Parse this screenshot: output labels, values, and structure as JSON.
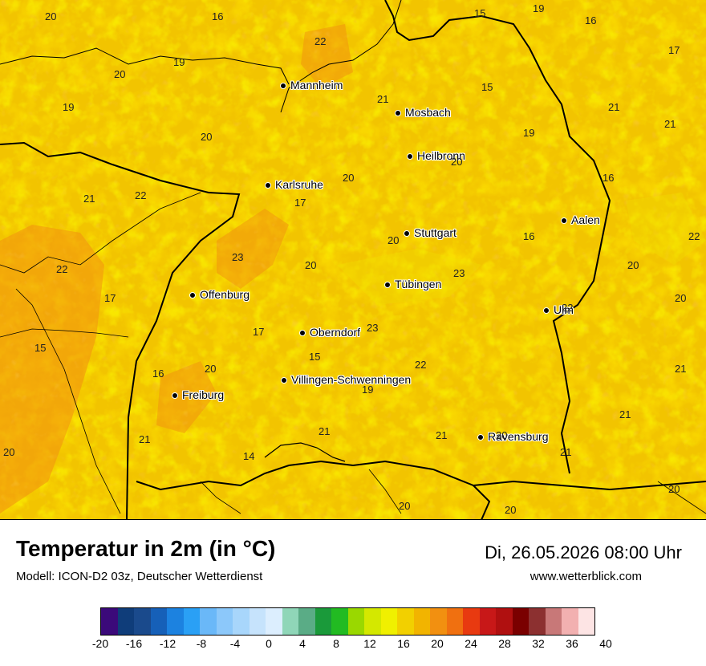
{
  "map": {
    "cities": [
      {
        "name": "Mannheim"
      },
      {
        "name": "Mosbach"
      },
      {
        "name": "Heilbronn"
      },
      {
        "name": "Karlsruhe"
      },
      {
        "name": "Stuttgart"
      },
      {
        "name": "Aalen"
      },
      {
        "name": "Tübingen"
      },
      {
        "name": "Offenburg"
      },
      {
        "name": "Ulm"
      },
      {
        "name": "Oberndorf"
      },
      {
        "name": "Villingen-Schwenningen"
      },
      {
        "name": "Freiburg"
      },
      {
        "name": "Ravensburg"
      }
    ],
    "values": [
      "20",
      "16",
      "15",
      "19",
      "16",
      "22",
      "19",
      "20",
      "17",
      "15",
      "21",
      "19",
      "21",
      "21",
      "19",
      "20",
      "20",
      "16",
      "21",
      "22",
      "17",
      "20",
      "23",
      "20",
      "20",
      "16",
      "22",
      "20",
      "22",
      "23",
      "17",
      "15",
      "20",
      "22",
      "17",
      "15",
      "23",
      "20",
      "16",
      "22",
      "21",
      "19",
      "21",
      "21",
      "21",
      "20",
      "21",
      "20",
      "14",
      "21",
      "20",
      "20",
      "20"
    ]
  },
  "footer": {
    "title": "Temperatur in 2m (in °C)",
    "model": "Modell: ICON-D2 03z, Deutscher Wetterdienst",
    "date": "Di, 26.05.2026 08:00 Uhr",
    "website": "www.wetterblick.com"
  },
  "scale": {
    "colors": [
      "#3b0a7a",
      "#0f3d7a",
      "#1a4a8c",
      "#1660b8",
      "#1c82e0",
      "#2aa0f5",
      "#6ab8f8",
      "#8cc8fa",
      "#a8d6fb",
      "#c6e3fc",
      "#dceefe",
      "#8fd6b8",
      "#5aac86",
      "#1a9a3a",
      "#22bb22",
      "#9ad800",
      "#d4e800",
      "#f0f000",
      "#f2d000",
      "#f2b400",
      "#f29010",
      "#f07010",
      "#e83a10",
      "#c81818",
      "#b01010",
      "#7a0000",
      "#8c3030",
      "#c87878",
      "#f2b0b0",
      "#fde4e4"
    ],
    "ticks": [
      "-20",
      "-16",
      "-12",
      "-8",
      "-4",
      "0",
      "4",
      "8",
      "12",
      "16",
      "20",
      "24",
      "28",
      "32",
      "36",
      "40"
    ]
  }
}
